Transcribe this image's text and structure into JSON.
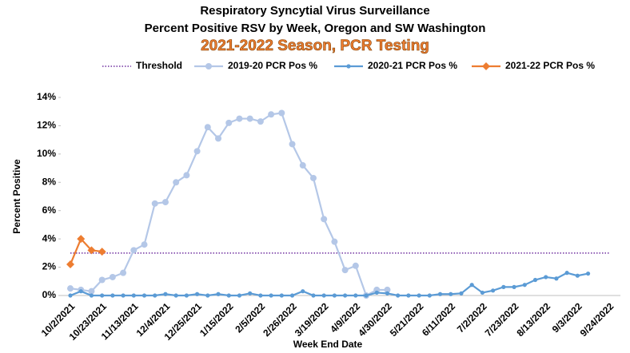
{
  "chart_data": {
    "type": "line",
    "title": "Respiratory Syncytial Virus Surveillance",
    "subtitle": "Percent Positive RSV by Week, Oregon and SW Washington",
    "season_title": "2021-2022 Season, PCR Testing",
    "y_label": "Percent Positive",
    "x_label": "Week End Date",
    "categories": [
      "10/2/2021",
      null,
      null,
      "10/23/2021",
      null,
      null,
      "11/13/2021",
      null,
      null,
      "12/4/2021",
      null,
      null,
      "12/25/2021",
      null,
      null,
      "1/15/2022",
      null,
      null,
      "2/5/2022",
      null,
      null,
      "2/26/2022",
      null,
      null,
      "3/19/2022",
      null,
      null,
      "4/9/2022",
      null,
      null,
      "4/30/2022",
      null,
      null,
      "5/21/2022",
      null,
      null,
      "6/11/2022",
      null,
      null,
      "7/2/2022",
      null,
      null,
      "7/23/2022",
      null,
      null,
      "8/13/2022",
      null,
      null,
      "9/3/2022",
      null,
      null,
      "9/24/2022"
    ],
    "ylim": [
      0,
      14
    ],
    "yticks": [
      {
        "value": 0,
        "label": "0%"
      },
      {
        "value": 2,
        "label": "2%"
      },
      {
        "value": 4,
        "label": "4%"
      },
      {
        "value": 6,
        "label": "6%"
      },
      {
        "value": 8,
        "label": "8%"
      },
      {
        "value": 10,
        "label": "10%"
      },
      {
        "value": 12,
        "label": "12%"
      },
      {
        "value": 14,
        "label": "14%"
      }
    ],
    "series": [
      {
        "name": "Threshold",
        "color": "#7030a0",
        "style": "dotted",
        "marker": "none",
        "values": [
          3,
          3,
          3,
          3,
          3,
          3,
          3,
          3,
          3,
          3,
          3,
          3,
          3,
          3,
          3,
          3,
          3,
          3,
          3,
          3,
          3,
          3,
          3,
          3,
          3,
          3,
          3,
          3,
          3,
          3,
          3,
          3,
          3,
          3,
          3,
          3,
          3,
          3,
          3,
          3,
          3,
          3,
          3,
          3,
          3,
          3,
          3,
          3,
          3,
          3,
          3,
          3
        ]
      },
      {
        "name": "2019-20 PCR Pos %",
        "color": "#b4c7e7",
        "style": "solid",
        "marker": "circle",
        "values": [
          0.5,
          0.4,
          0.3,
          1.1,
          1.3,
          1.6,
          3.2,
          3.6,
          6.5,
          6.6,
          8.0,
          8.5,
          10.2,
          11.9,
          11.1,
          12.2,
          12.5,
          12.5,
          12.3,
          12.8,
          12.9,
          10.7,
          9.2,
          8.3,
          5.4,
          3.8,
          1.8,
          2.1,
          0.0,
          0.4,
          0.4,
          null,
          null,
          null,
          null,
          null,
          null,
          null,
          null,
          null,
          null,
          null,
          null,
          null,
          null,
          null,
          null,
          null,
          null,
          null,
          null,
          null
        ]
      },
      {
        "name": "2020-21 PCR Pos %",
        "color": "#5b9bd5",
        "style": "solid",
        "marker": "small-circle",
        "values": [
          0.0,
          0.3,
          0.0,
          0.0,
          0.0,
          0.0,
          0.0,
          0.0,
          0.0,
          0.1,
          0.0,
          0.0,
          0.1,
          0.0,
          0.1,
          0.0,
          0.0,
          0.15,
          0.0,
          0.0,
          0.0,
          0.0,
          0.3,
          0.0,
          0.0,
          0.0,
          0.0,
          0.0,
          0.0,
          0.2,
          0.15,
          0.0,
          0.0,
          0.0,
          0.0,
          0.1,
          0.1,
          0.15,
          0.75,
          0.2,
          0.35,
          0.6,
          0.6,
          0.75,
          1.1,
          1.3,
          1.2,
          1.6,
          1.4,
          1.55,
          null,
          null
        ]
      },
      {
        "name": "2021-22 PCR Pos %",
        "color": "#ed7d31",
        "style": "solid",
        "marker": "diamond",
        "values": [
          2.2,
          4.0,
          3.2,
          3.1,
          null,
          null,
          null,
          null,
          null,
          null,
          null,
          null,
          null,
          null,
          null,
          null,
          null,
          null,
          null,
          null,
          null,
          null,
          null,
          null,
          null,
          null,
          null,
          null,
          null,
          null,
          null,
          null,
          null,
          null,
          null,
          null,
          null,
          null,
          null,
          null,
          null,
          null,
          null,
          null,
          null,
          null,
          null,
          null,
          null,
          null,
          null,
          null
        ]
      }
    ]
  }
}
